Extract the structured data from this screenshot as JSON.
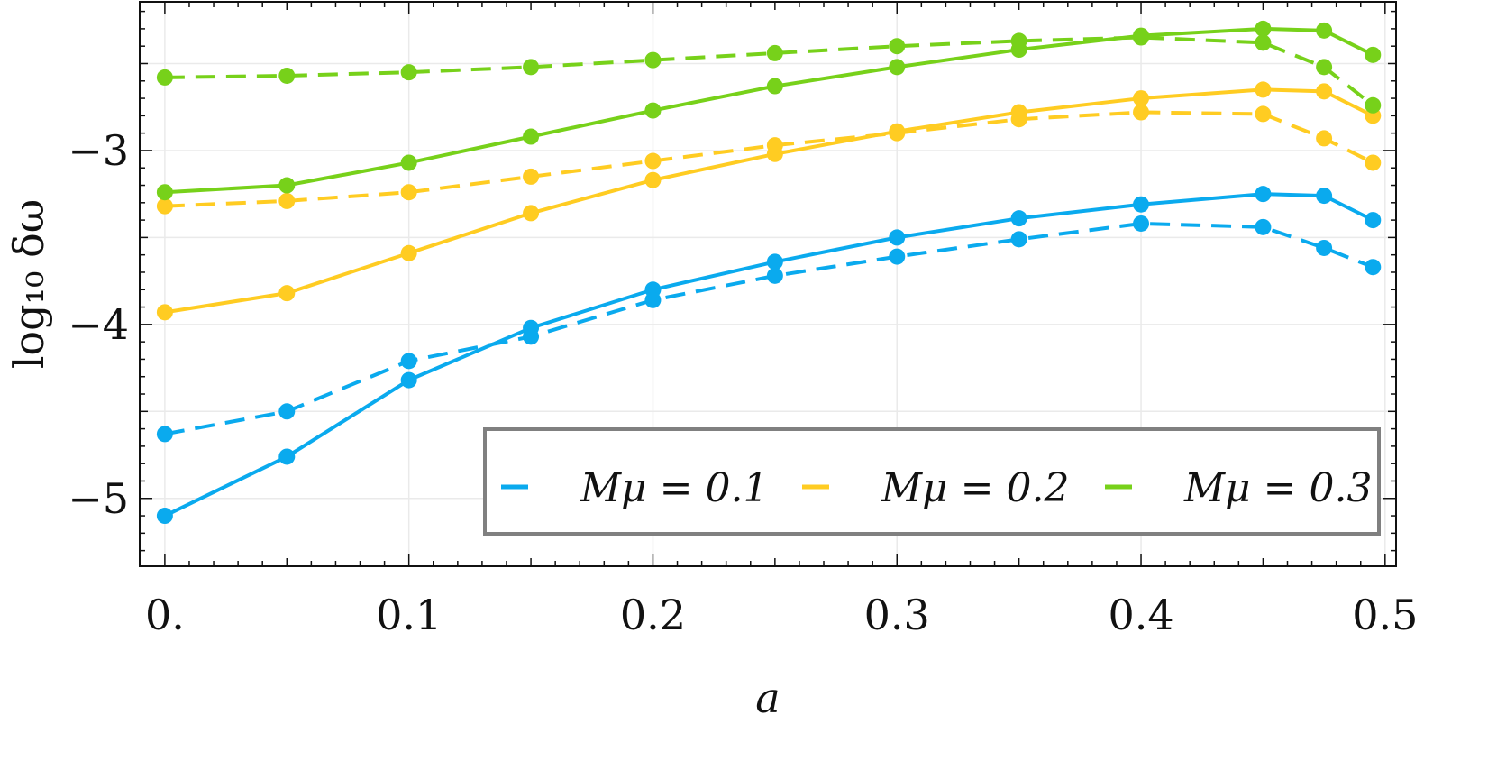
{
  "chart_data": {
    "type": "line",
    "title": "",
    "xlabel": "a",
    "ylabel": "log₁₀ δω",
    "xlim": [
      -0.0103,
      0.5045
    ],
    "ylim": [
      -5.39,
      -2.145
    ],
    "x_ticks": [
      0,
      0.1,
      0.2,
      0.3,
      0.4,
      0.5
    ],
    "x_tick_labels": [
      "0.",
      "0.1",
      "0.2",
      "0.3",
      "0.4",
      "0.5"
    ],
    "y_ticks": [
      -5,
      -4,
      -3
    ],
    "y_tick_labels": [
      "−5",
      "−4",
      "−3"
    ],
    "grid": true,
    "legend_placement": "bottom-right",
    "x": [
      0,
      0.05,
      0.1,
      0.15,
      0.2,
      0.25,
      0.3,
      0.35,
      0.4,
      0.45,
      0.475,
      0.495
    ],
    "series": [
      {
        "name": "Mμ = 0.1",
        "color": "#0AAAEE",
        "style": "solid",
        "values": [
          -5.1,
          -4.76,
          -4.32,
          -4.02,
          -3.8,
          -3.64,
          -3.5,
          -3.39,
          -3.31,
          -3.25,
          -3.26,
          -3.4
        ]
      },
      {
        "color": "#0AAAEE",
        "style": "dashed",
        "values": [
          -4.63,
          -4.5,
          -4.21,
          -4.07,
          -3.86,
          -3.72,
          -3.61,
          -3.51,
          -3.42,
          -3.44,
          -3.56,
          -3.67
        ]
      },
      {
        "name": "Mμ = 0.2",
        "color": "#FFCC22",
        "style": "solid",
        "values": [
          -3.93,
          -3.82,
          -3.59,
          -3.36,
          -3.17,
          -3.02,
          -2.89,
          -2.78,
          -2.7,
          -2.65,
          -2.66,
          -2.8
        ]
      },
      {
        "color": "#FFCC22",
        "style": "dashed",
        "values": [
          -3.32,
          -3.29,
          -3.24,
          -3.15,
          -3.06,
          -2.97,
          -2.9,
          -2.82,
          -2.78,
          -2.79,
          -2.93,
          -3.07
        ]
      },
      {
        "name": "Mμ = 0.3",
        "color": "#77D11A",
        "style": "solid",
        "values": [
          -3.24,
          -3.2,
          -3.07,
          -2.92,
          -2.77,
          -2.63,
          -2.52,
          -2.42,
          -2.34,
          -2.3,
          -2.31,
          -2.45
        ]
      },
      {
        "color": "#77D11A",
        "style": "dashed",
        "values": [
          -2.58,
          -2.57,
          -2.55,
          -2.52,
          -2.48,
          -2.44,
          -2.4,
          -2.37,
          -2.35,
          -2.38,
          -2.52,
          -2.74
        ]
      }
    ],
    "legend": [
      "Mμ = 0.1",
      "Mμ = 0.2",
      "Mμ = 0.3"
    ]
  }
}
